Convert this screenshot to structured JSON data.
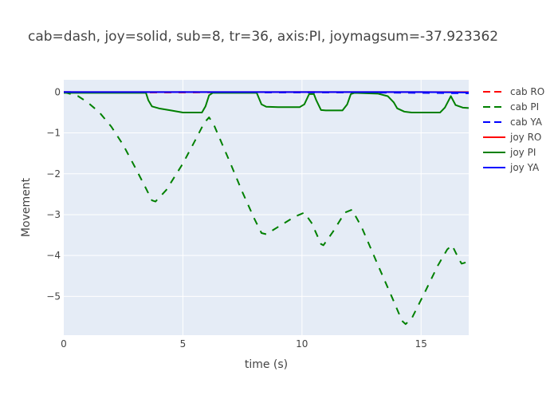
{
  "chart_data": {
    "type": "line",
    "title": "cab=dash, joy=solid, sub=8, tr=36, axis:PI, joymagsum=-37.923362",
    "xlabel": "time (s)",
    "ylabel": "Movement",
    "xlim": [
      0,
      17
    ],
    "ylim": [
      -5.95,
      0.3
    ],
    "x_ticks": [
      0,
      5,
      10,
      15
    ],
    "y_ticks": [
      0,
      -1,
      -2,
      -3,
      -4,
      -5
    ],
    "grid": true,
    "plot_background": "#e5ecf6",
    "legend_position": "right",
    "series": [
      {
        "name": "cab RO",
        "style": "dash",
        "color": "#ff0000",
        "points": [
          [
            0,
            0
          ],
          [
            1,
            -0.01
          ],
          [
            5,
            -0.01
          ],
          [
            10,
            0
          ],
          [
            15,
            -0.01
          ],
          [
            17,
            -0.02
          ]
        ]
      },
      {
        "name": "cab PI",
        "style": "dash",
        "color": "#008000",
        "points": [
          [
            0,
            0
          ],
          [
            0.6,
            -0.1
          ],
          [
            1.0,
            -0.25
          ],
          [
            1.5,
            -0.5
          ],
          [
            2,
            -0.85
          ],
          [
            2.5,
            -1.3
          ],
          [
            3,
            -1.85
          ],
          [
            3.4,
            -2.3
          ],
          [
            3.7,
            -2.65
          ],
          [
            3.85,
            -2.68
          ],
          [
            4.3,
            -2.4
          ],
          [
            5,
            -1.75
          ],
          [
            5.5,
            -1.2
          ],
          [
            5.9,
            -0.75
          ],
          [
            6.1,
            -0.62
          ],
          [
            6.3,
            -0.8
          ],
          [
            7,
            -1.75
          ],
          [
            7.5,
            -2.45
          ],
          [
            8,
            -3.1
          ],
          [
            8.3,
            -3.45
          ],
          [
            8.5,
            -3.48
          ],
          [
            9,
            -3.3
          ],
          [
            9.7,
            -3.05
          ],
          [
            10.1,
            -2.95
          ],
          [
            10.4,
            -3.2
          ],
          [
            10.8,
            -3.72
          ],
          [
            10.9,
            -3.75
          ],
          [
            11.3,
            -3.42
          ],
          [
            11.8,
            -2.95
          ],
          [
            12.1,
            -2.88
          ],
          [
            12.5,
            -3.3
          ],
          [
            13.2,
            -4.25
          ],
          [
            13.8,
            -5.05
          ],
          [
            14.2,
            -5.6
          ],
          [
            14.35,
            -5.68
          ],
          [
            14.6,
            -5.55
          ],
          [
            15.2,
            -4.85
          ],
          [
            15.7,
            -4.25
          ],
          [
            16.1,
            -3.85
          ],
          [
            16.3,
            -3.75
          ],
          [
            16.6,
            -4.1
          ],
          [
            16.7,
            -4.2
          ],
          [
            17,
            -4.15
          ]
        ]
      },
      {
        "name": "cab YA",
        "style": "dash",
        "color": "#0000ff",
        "points": [
          [
            0,
            0
          ],
          [
            2,
            -0.01
          ],
          [
            5,
            0
          ],
          [
            8,
            -0.01
          ],
          [
            12,
            -0.01
          ],
          [
            15,
            -0.02
          ],
          [
            17,
            -0.03
          ]
        ]
      },
      {
        "name": "joy RO",
        "style": "solid",
        "color": "#ff0000",
        "points": [
          [
            0,
            0
          ],
          [
            5,
            0
          ],
          [
            10,
            0
          ],
          [
            17,
            0
          ]
        ]
      },
      {
        "name": "joy PI",
        "style": "solid",
        "color": "#008000",
        "points": [
          [
            0,
            -0.02
          ],
          [
            3.45,
            -0.02
          ],
          [
            3.55,
            -0.2
          ],
          [
            3.7,
            -0.35
          ],
          [
            4,
            -0.4
          ],
          [
            4.5,
            -0.45
          ],
          [
            5,
            -0.5
          ],
          [
            5.8,
            -0.5
          ],
          [
            5.95,
            -0.35
          ],
          [
            6.1,
            -0.08
          ],
          [
            6.25,
            -0.02
          ],
          [
            8.1,
            -0.02
          ],
          [
            8.3,
            -0.3
          ],
          [
            8.5,
            -0.36
          ],
          [
            9,
            -0.37
          ],
          [
            9.9,
            -0.37
          ],
          [
            10.1,
            -0.3
          ],
          [
            10.3,
            -0.05
          ],
          [
            10.5,
            -0.05
          ],
          [
            10.6,
            -0.2
          ],
          [
            10.8,
            -0.44
          ],
          [
            11,
            -0.45
          ],
          [
            11.7,
            -0.45
          ],
          [
            11.9,
            -0.3
          ],
          [
            12.05,
            -0.05
          ],
          [
            12.2,
            -0.02
          ],
          [
            13.2,
            -0.04
          ],
          [
            13.6,
            -0.1
          ],
          [
            13.85,
            -0.25
          ],
          [
            14,
            -0.4
          ],
          [
            14.3,
            -0.48
          ],
          [
            14.6,
            -0.5
          ],
          [
            15.8,
            -0.5
          ],
          [
            16,
            -0.38
          ],
          [
            16.25,
            -0.1
          ],
          [
            16.45,
            -0.32
          ],
          [
            16.75,
            -0.38
          ],
          [
            17,
            -0.39
          ]
        ]
      },
      {
        "name": "joy YA",
        "style": "solid",
        "color": "#0000ff",
        "points": [
          [
            0,
            0
          ],
          [
            5,
            0
          ],
          [
            10,
            0
          ],
          [
            15,
            0
          ],
          [
            17,
            -0.01
          ]
        ]
      }
    ]
  }
}
